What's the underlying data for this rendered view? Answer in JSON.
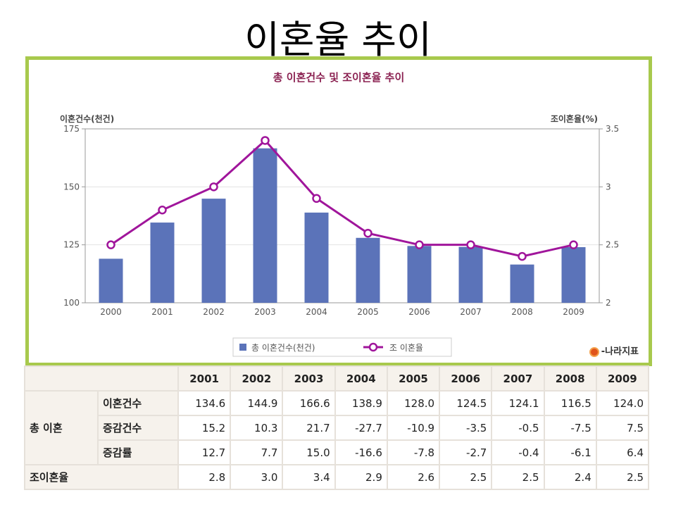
{
  "slide": {
    "title": "이혼율 추이"
  },
  "chart_data": {
    "type": "bar+line",
    "title": "총 이혼건수 및 조이혼율 추이",
    "categories": [
      "2000",
      "2001",
      "2002",
      "2003",
      "2004",
      "2005",
      "2006",
      "2007",
      "2008",
      "2009"
    ],
    "series": [
      {
        "name": "총 이혼건수(천건)",
        "type": "bar",
        "axis": "left",
        "values": [
          119,
          134.6,
          144.9,
          166.6,
          138.9,
          128.0,
          124.5,
          124.1,
          116.5,
          124.0
        ]
      },
      {
        "name": "조 이혼율",
        "type": "line",
        "axis": "right",
        "values": [
          2.5,
          2.8,
          3.0,
          3.4,
          2.9,
          2.6,
          2.5,
          2.5,
          2.4,
          2.5
        ]
      }
    ],
    "ylabel_left": "이혼건수(천건)",
    "ylabel_right": "조이혼율(%)",
    "ylim_left": [
      100,
      175
    ],
    "yticks_left": [
      "100",
      "125",
      "150",
      "175"
    ],
    "ylim_right": [
      2,
      3.5
    ],
    "yticks_right": [
      "2",
      "2.5",
      "3",
      "3.5"
    ],
    "grid": true,
    "legend": "bottom",
    "colors": {
      "bar": "#5b73b9",
      "line": "#a0159b"
    },
    "source": "-나라지표"
  },
  "table": {
    "years": [
      "2001",
      "2002",
      "2003",
      "2004",
      "2005",
      "2006",
      "2007",
      "2008",
      "2009"
    ],
    "group_label": "총 이혼",
    "rows": [
      {
        "label": "이혼건수",
        "values": [
          "134.6",
          "144.9",
          "166.6",
          "138.9",
          "128.0",
          "124.5",
          "124.1",
          "116.5",
          "124.0"
        ]
      },
      {
        "label": "증감건수",
        "values": [
          "15.2",
          "10.3",
          "21.7",
          "-27.7",
          "-10.9",
          "-3.5",
          "-0.5",
          "-7.5",
          "7.5"
        ]
      },
      {
        "label": "증감률",
        "values": [
          "12.7",
          "7.7",
          "15.0",
          "-16.6",
          "-7.8",
          "-2.7",
          "-0.4",
          "-6.1",
          "6.4"
        ]
      }
    ],
    "rate_row": {
      "label": "조이혼율",
      "values": [
        "2.8",
        "3.0",
        "3.4",
        "2.9",
        "2.6",
        "2.5",
        "2.5",
        "2.4",
        "2.5"
      ]
    }
  }
}
